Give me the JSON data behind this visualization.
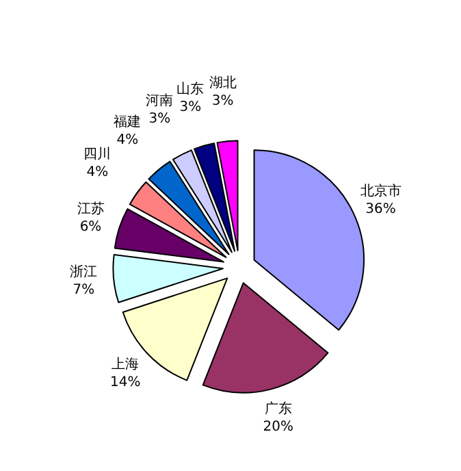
{
  "chart_data": {
    "type": "pie",
    "categories": [
      "北京市",
      "广东",
      "上海",
      "浙江",
      "江苏",
      "四川",
      "福建",
      "河南",
      "山东",
      "湖北"
    ],
    "values": [
      36,
      20,
      14,
      7,
      6,
      4,
      4,
      3,
      3,
      3
    ],
    "colors": [
      "#9999ff",
      "#993366",
      "#ffffcc",
      "#ccffff",
      "#660066",
      "#ff8080",
      "#0066cc",
      "#ccccff",
      "#000080",
      "#ff00ff"
    ],
    "value_labels": [
      "36%",
      "20%",
      "14%",
      "7%",
      "6%",
      "4%",
      "4%",
      "3%",
      "3%",
      "3%"
    ]
  }
}
